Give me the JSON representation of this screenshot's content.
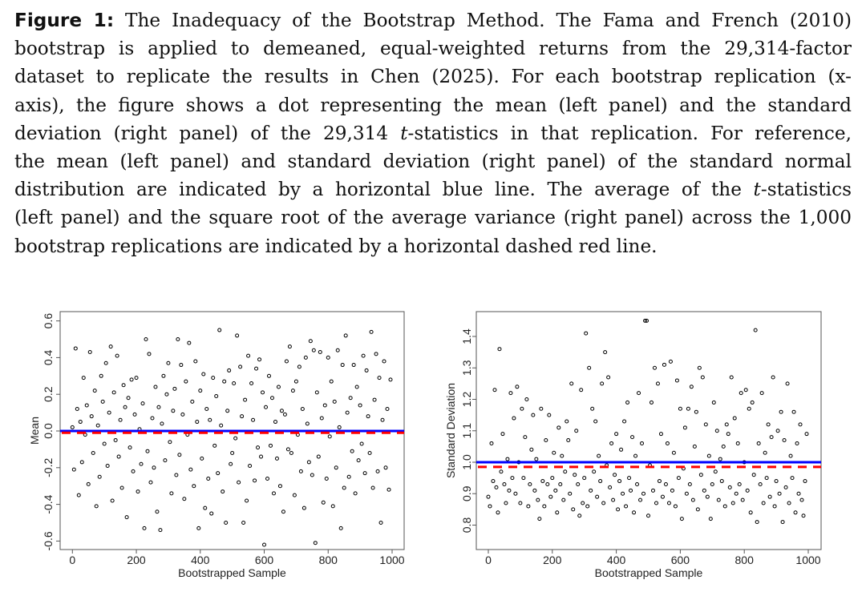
{
  "caption": {
    "label": "Figure 1:",
    "lines": [
      " The Inadequacy of the Bootstrap Method. The Fama and French (2010)",
      "bootstrap is applied to demeaned, equal-weighted returns from the 29,314-factor",
      "dataset to replicate the results in Chen (2025). For each bootstrap replication (x-",
      "axis), the figure shows a dot representing the mean (left panel) and the standard",
      {
        "pre": "deviation (right panel) of the 29,314 ",
        "it": "t",
        "post": "-statistics in that replication. For reference,"
      },
      "the mean (left panel) and standard deviation (right panel) of the standard normal",
      {
        "pre": "distribution are indicated by a horizontal blue line. The average of the ",
        "it": "t",
        "post": "-statistics"
      },
      "(left panel) and the square root of the average variance (right panel) across the 1,000",
      "bootstrap replications are indicated by a horizontal dashed red line."
    ]
  },
  "colors": {
    "reference_line": "#0000ff",
    "average_line": "#ff0000",
    "points": "#000000"
  },
  "chart_data": [
    {
      "type": "scatter",
      "title": "",
      "xlabel": "Bootstrapped Sample",
      "ylabel": "Mean",
      "xlim": [
        0,
        1000
      ],
      "ylim": [
        -0.62,
        0.62
      ],
      "xticks": [
        "0",
        "200",
        "400",
        "600",
        "800",
        "1000"
      ],
      "yticks": [
        "-0.6",
        "-0.4",
        "-0.2",
        "0.0",
        "0.2",
        "0.4",
        "0.6"
      ],
      "reference_line": {
        "label": "standard normal mean",
        "value": 0.0,
        "style": "solid",
        "color": "blue"
      },
      "average_line": {
        "label": "average of t-statistics",
        "value": -0.01,
        "style": "dashed",
        "color": "red"
      },
      "x_start": 0,
      "x_step": 5,
      "values": [
        0.02,
        -0.21,
        0.45,
        0.12,
        -0.35,
        0.05,
        -0.17,
        0.29,
        -0.02,
        0.14,
        -0.29,
        0.43,
        0.08,
        -0.12,
        0.22,
        -0.41,
        0.03,
        -0.25,
        0.3,
        0.16,
        -0.07,
        0.37,
        -0.19,
        0.1,
        0.46,
        -0.38,
        0.21,
        -0.05,
        0.41,
        -0.14,
        0.06,
        -0.31,
        0.25,
        0.13,
        -0.47,
        0.18,
        -0.09,
        0.28,
        -0.22,
        0.09,
        0.29,
        -0.33,
        0.01,
        -0.18,
        0.15,
        -0.53,
        0.5,
        -0.11,
        0.42,
        -0.28,
        0.07,
        -0.2,
        0.24,
        -0.44,
        0.13,
        -0.54,
        0.04,
        0.3,
        -0.16,
        0.2,
        0.37,
        -0.06,
        -0.34,
        0.11,
        0.23,
        -0.24,
        0.5,
        -0.13,
        0.36,
        0.09,
        -0.37,
        0.27,
        -0.02,
        0.48,
        -0.21,
        0.16,
        -0.3,
        0.38,
        0.05,
        -0.53,
        0.22,
        -0.15,
        0.31,
        -0.42,
        0.12,
        -0.26,
        0.06,
        -0.45,
        0.29,
        -0.08,
        0.19,
        -0.23,
        0.55,
        0.03,
        -0.33,
        0.27,
        -0.5,
        0.11,
        0.33,
        -0.18,
        -0.12,
        0.26,
        -0.04,
        0.52,
        -0.28,
        0.35,
        0.08,
        -0.5,
        0.17,
        -0.38,
        0.41,
        -0.19,
        0.26,
        0.06,
        -0.27,
        0.34,
        -0.09,
        0.39,
        -0.14,
        0.21,
        -0.62,
        0.13,
        -0.26,
        0.3,
        -0.08,
        0.18,
        -0.34,
        0.05,
        -0.15,
        0.24,
        -0.3,
        0.11,
        -0.44,
        0.09,
        0.38,
        -0.1,
        0.46,
        -0.12,
        0.22,
        -0.35,
        0.27,
        -0.02,
        0.35,
        -0.22,
        0.12,
        -0.42,
        0.4,
        0.04,
        -0.17,
        0.49,
        -0.24,
        0.44,
        -0.61,
        0.21,
        -0.14,
        0.43,
        0.07,
        -0.39,
        0.14,
        -0.26,
        0.4,
        -0.03,
        0.27,
        -0.41,
        0.16,
        -0.2,
        0.44,
        0.02,
        -0.53,
        0.36,
        -0.31,
        0.52,
        0.1,
        -0.25,
        0.18,
        -0.11,
        0.36,
        -0.34,
        0.24,
        -0.16,
        0.14,
        -0.07,
        0.41,
        -0.23,
        0.33,
        0.08,
        -0.12,
        0.54,
        -0.31,
        0.17,
        0.42,
        -0.22,
        0.29,
        -0.5,
        0.06,
        0.38,
        -0.2,
        0.12,
        -0.32,
        0.28
      ]
    },
    {
      "type": "scatter",
      "title": "",
      "xlabel": "Bootstrapped Sample",
      "ylabel": "Standard Deviation",
      "xlim": [
        0,
        1000
      ],
      "ylim": [
        0.72,
        1.47
      ],
      "xticks": [
        "0",
        "200",
        "400",
        "600",
        "800",
        "1000"
      ],
      "yticks": [
        "0.8",
        "0.9",
        "1.0",
        "1.1",
        "1.2",
        "1.3",
        "1.4"
      ],
      "reference_line": {
        "label": "standard normal standard deviation",
        "value": 1.0,
        "style": "solid",
        "color": "blue"
      },
      "average_line": {
        "label": "square root of average variance",
        "value": 0.985,
        "style": "dashed",
        "color": "red"
      },
      "x_start": 0,
      "x_step": 5,
      "values": [
        0.89,
        0.86,
        1.06,
        0.94,
        1.23,
        0.92,
        0.84,
        1.36,
        0.97,
        1.09,
        0.93,
        0.87,
        1.01,
        0.91,
        1.22,
        0.95,
        1.14,
        0.9,
        1.24,
        1.0,
        0.87,
        1.17,
        0.95,
        1.08,
        1.2,
        0.86,
        0.93,
        1.04,
        1.15,
        0.91,
        1.01,
        0.88,
        0.82,
        1.17,
        0.94,
        0.86,
        1.07,
        0.93,
        1.15,
        0.89,
        0.95,
        1.03,
        0.91,
        0.84,
        1.11,
        0.93,
        1.02,
        0.88,
        0.97,
        1.13,
        1.07,
        0.9,
        1.25,
        0.85,
        0.96,
        1.1,
        0.93,
        0.83,
        1.23,
        0.87,
        0.95,
        1.41,
        0.86,
        1.3,
        0.91,
        1.17,
        0.97,
        1.13,
        0.89,
        1.02,
        0.94,
        1.25,
        0.87,
        1.35,
        0.99,
        1.27,
        0.92,
        1.06,
        0.88,
        0.96,
        1.09,
        0.85,
        0.94,
        1.04,
        0.9,
        1.13,
        0.86,
        1.19,
        0.95,
        0.91,
        1.08,
        0.84,
        1.02,
        0.93,
        1.22,
        0.88,
        1.06,
        0.9,
        1.45,
        1.45,
        0.83,
        0.99,
        1.19,
        0.91,
        1.3,
        0.87,
        1.25,
        0.94,
        1.09,
        0.89,
        1.31,
        0.93,
        1.06,
        0.87,
        1.32,
        0.91,
        1.03,
        0.86,
        1.26,
        0.95,
        1.17,
        0.82,
        0.98,
        1.11,
        0.9,
        1.17,
        0.93,
        1.24,
        0.88,
        1.05,
        1.16,
        0.85,
        1.3,
        0.96,
        1.27,
        0.91,
        1.12,
        0.89,
        1.02,
        0.82,
        0.93,
        1.19,
        0.97,
        1.1,
        0.88,
        1.01,
        0.94,
        1.05,
        0.86,
        1.12,
        1.09,
        0.92,
        1.27,
        0.87,
        1.14,
        0.9,
        1.06,
        0.93,
        1.22,
        0.88,
        1.0,
        1.23,
        0.91,
        1.17,
        0.84,
        1.19,
        0.96,
        1.42,
        0.81,
        1.06,
        0.93,
        1.22,
        0.87,
        1.03,
        0.95,
        1.12,
        0.89,
        1.08,
        1.27,
        0.86,
        0.94,
        1.1,
        0.9,
        1.16,
        0.81,
        1.07,
        0.92,
        1.25,
        0.87,
        1.02,
        0.95,
        1.16,
        0.84,
        1.06,
        0.9,
        1.12,
        0.88,
        0.83,
        0.94,
        1.09
      ]
    }
  ]
}
